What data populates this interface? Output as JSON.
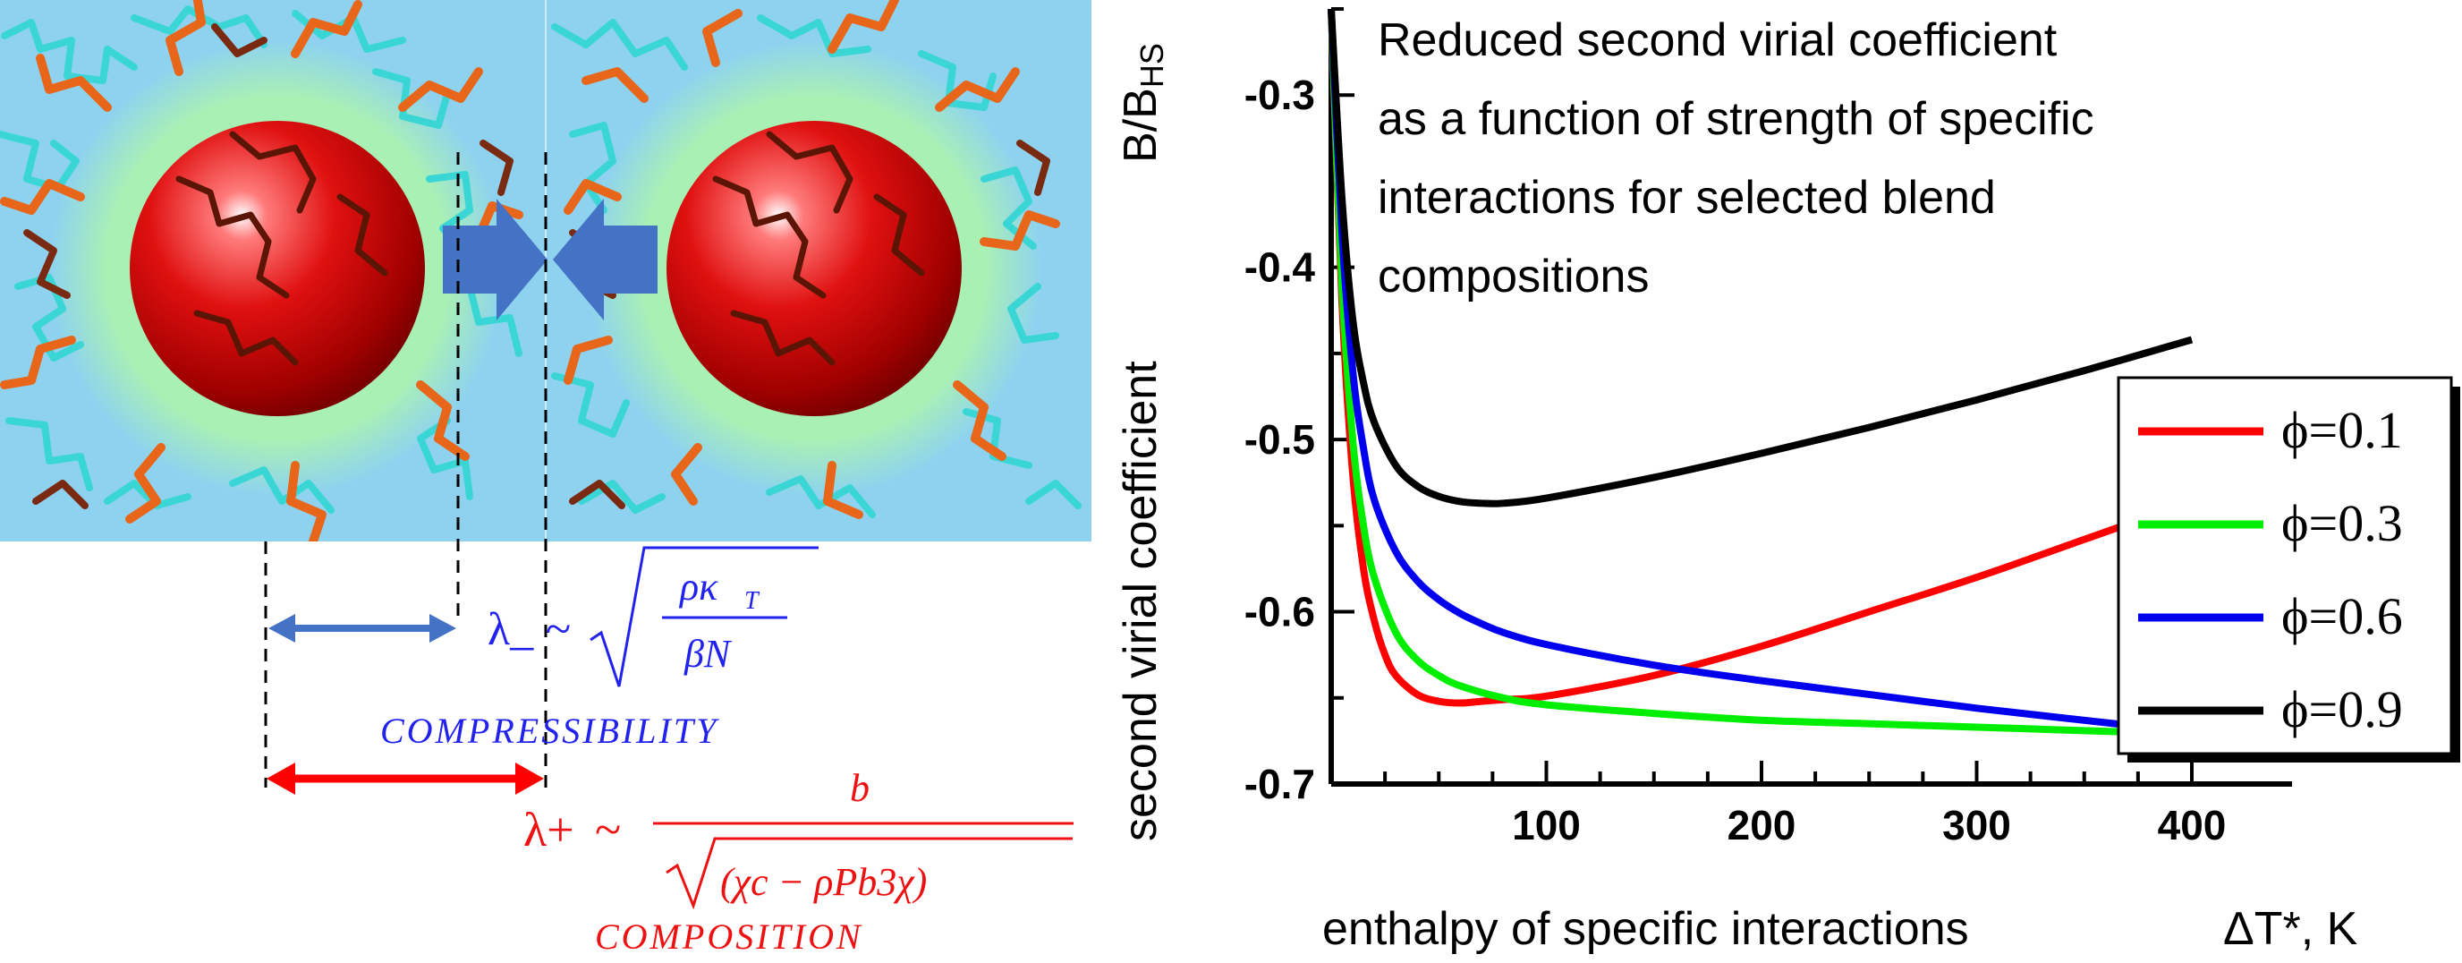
{
  "illustration": {
    "lambda_minus": "λ_",
    "lambda_plus": "λ+",
    "tilde": "~",
    "compressibility_label": "COMPRESSIBILITY",
    "composition_label": "COMPOSITION",
    "formula_minus_numerator": "ρκ",
    "formula_minus_numerator_sub": "T",
    "formula_minus_denominator": "βN",
    "formula_plus_numerator": "b",
    "formula_plus_denominator": "(χc − ρPb3χ)",
    "colors": {
      "background_matrix": "#8ed2f0",
      "halo": "#a9f0b5",
      "particle": "#d40000",
      "cyan_chains": "#3ad6d6",
      "orange_chains": "#e8661a",
      "blue_arrows": "#4472c4",
      "red_arrows": "#ff0000",
      "blue_text": "#2222ee",
      "red_text": "#ee1111"
    }
  },
  "chart_data": {
    "type": "line",
    "title": "Reduced second virial coefficient as a function of strength of specific interactions for selected blend compositions",
    "title_lines": [
      "Reduced second virial coefficient",
      "as a function of strength of specific",
      "interactions for selected blend",
      "compositions"
    ],
    "xlabel": "enthalpy of specific interactions",
    "xlabel_symbol": "ΔT*, K",
    "ylabel": "second virial coefficient",
    "ylabel_symbol_main": "B/B",
    "ylabel_symbol_sub": "HS",
    "xlim": [
      0,
      400
    ],
    "ylim": [
      -0.7,
      -0.25
    ],
    "xticks": [
      100,
      200,
      300,
      400
    ],
    "yticks": [
      -0.3,
      -0.4,
      -0.5,
      -0.6,
      -0.7
    ],
    "ytick_labels": [
      "-0.3",
      "-0.4",
      "-0.5",
      "-0.6",
      "-0.7"
    ],
    "legend_position": "right",
    "series": [
      {
        "name": "ϕ=0.1",
        "color": "#ff0000",
        "x": [
          0,
          5,
          10,
          15,
          20,
          25,
          30,
          40,
          50,
          60,
          70,
          80,
          100,
          150,
          200,
          250,
          300,
          350,
          400
        ],
        "y": [
          -0.25,
          -0.42,
          -0.52,
          -0.575,
          -0.605,
          -0.625,
          -0.637,
          -0.648,
          -0.652,
          -0.653,
          -0.652,
          -0.651,
          -0.649,
          -0.637,
          -0.62,
          -0.6,
          -0.58,
          -0.558,
          -0.536
        ]
      },
      {
        "name": "ϕ=0.3",
        "color": "#00ee00",
        "x": [
          0,
          5,
          10,
          15,
          20,
          30,
          40,
          50,
          60,
          80,
          100,
          150,
          200,
          250,
          300,
          350,
          400
        ],
        "y": [
          -0.25,
          -0.41,
          -0.5,
          -0.55,
          -0.58,
          -0.612,
          -0.628,
          -0.637,
          -0.643,
          -0.65,
          -0.654,
          -0.659,
          -0.663,
          -0.665,
          -0.667,
          -0.669,
          -0.671
        ]
      },
      {
        "name": "ϕ=0.6",
        "color": "#0000ee",
        "x": [
          0,
          5,
          10,
          15,
          20,
          30,
          40,
          50,
          60,
          70,
          80,
          100,
          150,
          200,
          250,
          300,
          350,
          400
        ],
        "y": [
          -0.25,
          -0.38,
          -0.46,
          -0.505,
          -0.535,
          -0.565,
          -0.582,
          -0.593,
          -0.601,
          -0.607,
          -0.612,
          -0.619,
          -0.631,
          -0.64,
          -0.648,
          -0.656,
          -0.663,
          -0.67
        ]
      },
      {
        "name": "ϕ=0.9",
        "color": "#000000",
        "x": [
          0,
          5,
          10,
          15,
          20,
          30,
          40,
          50,
          60,
          70,
          80,
          100,
          150,
          200,
          250,
          300,
          350,
          400
        ],
        "y": [
          -0.25,
          -0.36,
          -0.43,
          -0.467,
          -0.49,
          -0.515,
          -0.527,
          -0.533,
          -0.536,
          -0.537,
          -0.537,
          -0.534,
          -0.522,
          -0.508,
          -0.493,
          -0.477,
          -0.46,
          -0.442
        ]
      }
    ]
  }
}
